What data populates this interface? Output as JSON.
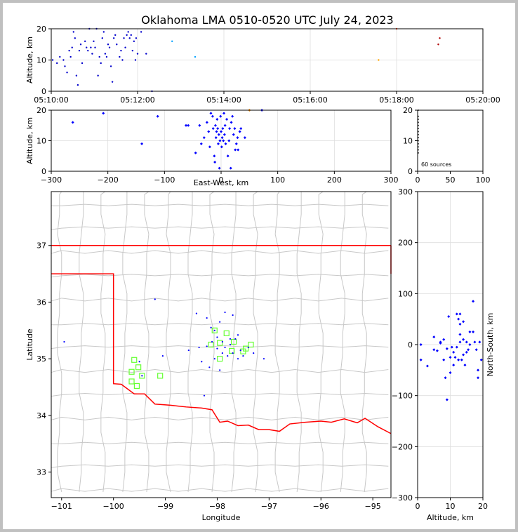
{
  "title": "Oklahoma LMA 0510-0520 UTC July 24, 2023",
  "chart_data": [
    {
      "panel": "time-altitude",
      "type": "scatter",
      "xlabel": "",
      "ylabel": "Altitude, km",
      "xlim": [
        0,
        600
      ],
      "ylim": [
        0,
        20
      ],
      "xticks": [
        0,
        120,
        240,
        360,
        480,
        600
      ],
      "xtick_labels": [
        "05:10:00",
        "05:12:00",
        "05:14:00",
        "05:16:00",
        "05:18:00",
        "05:20:00"
      ],
      "yticks": [
        0,
        10,
        20
      ],
      "grid": true,
      "points": [
        [
          2,
          10
        ],
        [
          8,
          9
        ],
        [
          12,
          11
        ],
        [
          17,
          10
        ],
        [
          19,
          8
        ],
        [
          22,
          6
        ],
        [
          25,
          13
        ],
        [
          27,
          11
        ],
        [
          29,
          14
        ],
        [
          31,
          19
        ],
        [
          33,
          17
        ],
        [
          35,
          5
        ],
        [
          37,
          2
        ],
        [
          39,
          13
        ],
        [
          41,
          15
        ],
        [
          43,
          9
        ],
        [
          47,
          16
        ],
        [
          49,
          14
        ],
        [
          51,
          13
        ],
        [
          53,
          20
        ],
        [
          55,
          14
        ],
        [
          57,
          12
        ],
        [
          59,
          16
        ],
        [
          61,
          14
        ],
        [
          63,
          20
        ],
        [
          65,
          5
        ],
        [
          67,
          11
        ],
        [
          69,
          9
        ],
        [
          71,
          17
        ],
        [
          73,
          19
        ],
        [
          75,
          12
        ],
        [
          77,
          11
        ],
        [
          79,
          15
        ],
        [
          81,
          14
        ],
        [
          83,
          8
        ],
        [
          85,
          3
        ],
        [
          87,
          17
        ],
        [
          89,
          18
        ],
        [
          91,
          15
        ],
        [
          95,
          11
        ],
        [
          97,
          13
        ],
        [
          99,
          10
        ],
        [
          101,
          17
        ],
        [
          103,
          14
        ],
        [
          105,
          18
        ],
        [
          107,
          19
        ],
        [
          109,
          17
        ],
        [
          111,
          18
        ],
        [
          113,
          13
        ],
        [
          115,
          16
        ],
        [
          117,
          10
        ],
        [
          118,
          17
        ],
        [
          120,
          12
        ],
        [
          125,
          19
        ],
        [
          132,
          12
        ],
        [
          140,
          0
        ],
        [
          168,
          16
        ],
        [
          200,
          11
        ],
        [
          455,
          10
        ],
        [
          480,
          20
        ],
        [
          538,
          15
        ],
        [
          540,
          17
        ]
      ]
    },
    {
      "panel": "east-west-altitude",
      "type": "scatter",
      "xlabel": "East-West, km",
      "ylabel": "Altitude, km",
      "xlim": [
        -300,
        300
      ],
      "ylim": [
        0,
        20
      ],
      "xticks": [
        -300,
        -200,
        -100,
        0,
        100,
        200,
        300
      ],
      "yticks": [
        0,
        10,
        20
      ],
      "grid": true,
      "points": [
        [
          -262,
          16
        ],
        [
          -208,
          19
        ],
        [
          -112,
          18
        ],
        [
          -140,
          9
        ],
        [
          -62,
          15
        ],
        [
          -58,
          15
        ],
        [
          -45,
          6
        ],
        [
          -38,
          15
        ],
        [
          -35,
          9
        ],
        [
          -30,
          11
        ],
        [
          -25,
          16
        ],
        [
          -22,
          13
        ],
        [
          -20,
          8
        ],
        [
          -18,
          19
        ],
        [
          -15,
          18
        ],
        [
          -14,
          14
        ],
        [
          -12,
          5
        ],
        [
          -11,
          3
        ],
        [
          -10,
          15
        ],
        [
          -9,
          11
        ],
        [
          -8,
          13
        ],
        [
          -7,
          17
        ],
        [
          -6,
          14
        ],
        [
          -5,
          9
        ],
        [
          -4,
          12
        ],
        [
          -3,
          1
        ],
        [
          -2,
          10
        ],
        [
          -1,
          18
        ],
        [
          0,
          13
        ],
        [
          1,
          8
        ],
        [
          2,
          11
        ],
        [
          3,
          14
        ],
        [
          4,
          10
        ],
        [
          5,
          19
        ],
        [
          6,
          12
        ],
        [
          7,
          15
        ],
        [
          8,
          9
        ],
        [
          10,
          17
        ],
        [
          12,
          5
        ],
        [
          14,
          10
        ],
        [
          15,
          14
        ],
        [
          17,
          1
        ],
        [
          18,
          16
        ],
        [
          20,
          18
        ],
        [
          22,
          12
        ],
        [
          24,
          14
        ],
        [
          25,
          7
        ],
        [
          27,
          9
        ],
        [
          29,
          11
        ],
        [
          30,
          7
        ],
        [
          33,
          13
        ],
        [
          35,
          14
        ],
        [
          42,
          11
        ],
        [
          72,
          20
        ],
        [
          50,
          20
        ]
      ]
    },
    {
      "panel": "altitude-histogram",
      "type": "scatter",
      "xlim": [
        0,
        100
      ],
      "ylim": [
        0,
        20
      ],
      "xticks": [
        0,
        50,
        100
      ],
      "yticks": [
        0,
        10,
        20
      ],
      "annotation": "60 sources",
      "points": [
        [
          1,
          20
        ],
        [
          1,
          18
        ],
        [
          1,
          17
        ],
        [
          1,
          16
        ],
        [
          1,
          15
        ],
        [
          1,
          14
        ],
        [
          1,
          13
        ],
        [
          1,
          12
        ],
        [
          1,
          11
        ],
        [
          1,
          10
        ],
        [
          1,
          9
        ],
        [
          1,
          8
        ],
        [
          1,
          7
        ],
        [
          1,
          6
        ]
      ]
    },
    {
      "panel": "plan-view",
      "type": "scatter",
      "xlabel": "Longitude",
      "ylabel": "Latitude",
      "xlim": [
        -101.2,
        -94.65
      ],
      "ylim": [
        32.55,
        37.95
      ],
      "xticks": [
        -101,
        -100,
        -99,
        -98,
        -97,
        -96,
        -95
      ],
      "yticks": [
        33,
        34,
        35,
        36,
        37
      ],
      "points": [
        [
          -100.95,
          35.3
        ],
        [
          -99.2,
          36.05
        ],
        [
          -98.4,
          35.8
        ],
        [
          -98.2,
          35.72
        ],
        [
          -98.05,
          35.5
        ],
        [
          -97.95,
          35.65
        ],
        [
          -97.85,
          35.82
        ],
        [
          -97.7,
          35.77
        ],
        [
          -98.55,
          35.15
        ],
        [
          -98.35,
          35.2
        ],
        [
          -98.2,
          35.22
        ],
        [
          -98.1,
          35.3
        ],
        [
          -98.0,
          35.38
        ],
        [
          -97.9,
          35.3
        ],
        [
          -97.85,
          35.2
        ],
        [
          -97.75,
          35.25
        ],
        [
          -97.65,
          35.35
        ],
        [
          -97.6,
          35.42
        ],
        [
          -97.55,
          35.15
        ],
        [
          -97.5,
          35.05
        ],
        [
          -98.3,
          34.95
        ],
        [
          -98.15,
          34.85
        ],
        [
          -97.95,
          34.8
        ],
        [
          -97.8,
          35.05
        ],
        [
          -98.05,
          35.0
        ],
        [
          -97.7,
          35.1
        ],
        [
          -97.9,
          35.1
        ],
        [
          -98.0,
          35.18
        ],
        [
          -97.4,
          35.2
        ],
        [
          -97.3,
          35.1
        ],
        [
          -97.1,
          35.0
        ],
        [
          -98.25,
          34.35
        ],
        [
          -99.5,
          34.95
        ],
        [
          -99.45,
          34.7
        ],
        [
          -99.05,
          35.05
        ],
        [
          -97.6,
          35.0
        ],
        [
          -97.75,
          35.35
        ],
        [
          -98.12,
          35.55
        ]
      ],
      "stations": [
        [
          -98.05,
          35.5
        ],
        [
          -97.82,
          35.45
        ],
        [
          -98.12,
          35.25
        ],
        [
          -97.95,
          35.28
        ],
        [
          -97.68,
          35.3
        ],
        [
          -97.35,
          35.25
        ],
        [
          -97.5,
          35.13
        ],
        [
          -97.45,
          35.18
        ],
        [
          -97.72,
          35.14
        ],
        [
          -97.95,
          35.0
        ],
        [
          -99.6,
          34.98
        ],
        [
          -99.52,
          34.85
        ],
        [
          -99.65,
          34.77
        ],
        [
          -99.45,
          34.7
        ],
        [
          -99.1,
          34.7
        ],
        [
          -99.65,
          34.6
        ],
        [
          -99.55,
          34.52
        ]
      ]
    },
    {
      "panel": "altitude-north-south",
      "type": "scatter",
      "xlabel": "Altitude, km",
      "ylabel": "North-South, km",
      "xlim": [
        0,
        20
      ],
      "ylim": [
        -300,
        300
      ],
      "xticks": [
        0,
        10,
        20
      ],
      "yticks": [
        -300,
        -200,
        -100,
        0,
        100,
        200,
        300
      ],
      "points": [
        [
          1,
          0
        ],
        [
          1,
          -30
        ],
        [
          3,
          -42
        ],
        [
          5,
          15
        ],
        [
          5,
          -10
        ],
        [
          6,
          -12
        ],
        [
          7,
          5
        ],
        [
          7,
          3
        ],
        [
          8,
          10
        ],
        [
          8,
          -30
        ],
        [
          8.5,
          -65
        ],
        [
          9,
          -8
        ],
        [
          9,
          -108
        ],
        [
          9.5,
          55
        ],
        [
          10,
          -25
        ],
        [
          10,
          -55
        ],
        [
          10.5,
          -5
        ],
        [
          11,
          -40
        ],
        [
          11,
          -15
        ],
        [
          11.5,
          -25
        ],
        [
          12,
          60
        ],
        [
          12,
          -5
        ],
        [
          12.5,
          -30
        ],
        [
          13,
          60
        ],
        [
          13,
          20
        ],
        [
          13,
          5
        ],
        [
          13.5,
          -30
        ],
        [
          14,
          10
        ],
        [
          14,
          -20
        ],
        [
          14.5,
          -40
        ],
        [
          15,
          5
        ],
        [
          15,
          -15
        ],
        [
          15.5,
          -10
        ],
        [
          16,
          0
        ],
        [
          16,
          25
        ],
        [
          17,
          85
        ],
        [
          17,
          25
        ],
        [
          17.5,
          5
        ],
        [
          18,
          -10
        ],
        [
          18.5,
          -50
        ],
        [
          18.5,
          -65
        ],
        [
          19,
          5
        ],
        [
          19.5,
          -30
        ],
        [
          12.5,
          50
        ],
        [
          13,
          40
        ],
        [
          14,
          45
        ]
      ]
    }
  ]
}
